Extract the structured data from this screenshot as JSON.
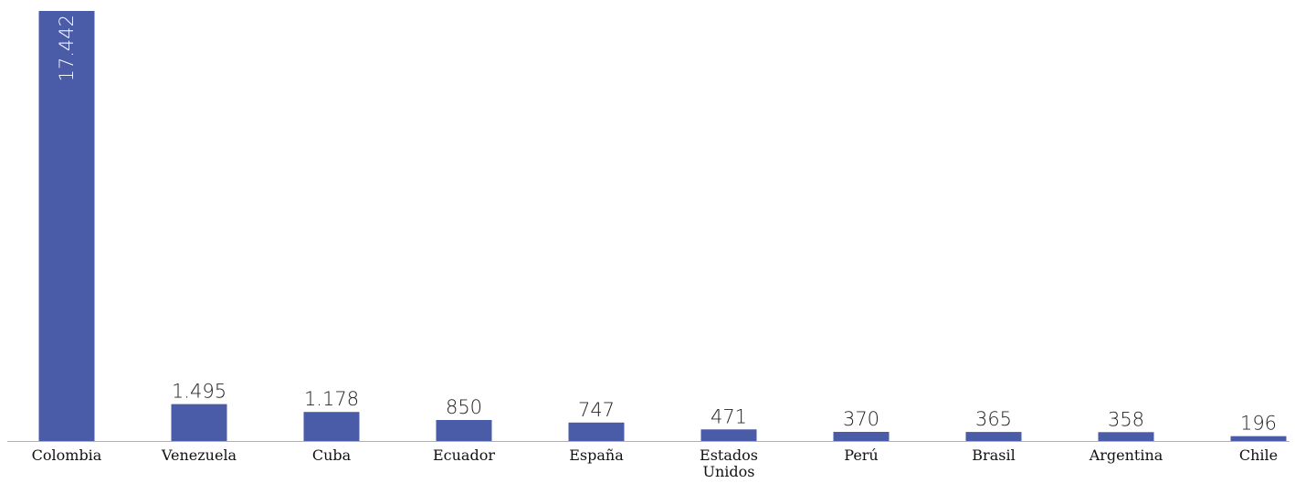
{
  "chart_data": {
    "type": "bar",
    "categories": [
      "Colombia",
      "Venezuela",
      "Cuba",
      "Ecuador",
      "España",
      "Estados Unidos",
      "Perú",
      "Brasil",
      "Argentina",
      "Chile"
    ],
    "category_lines": [
      [
        "Colombia"
      ],
      [
        "Venezuela"
      ],
      [
        "Cuba"
      ],
      [
        "Ecuador"
      ],
      [
        "España"
      ],
      [
        "Estados",
        "Unidos"
      ],
      [
        "Perú"
      ],
      [
        "Brasil"
      ],
      [
        "Argentina"
      ],
      [
        "Chile"
      ]
    ],
    "values": [
      17442,
      1495,
      1178,
      850,
      747,
      471,
      370,
      365,
      358,
      196
    ],
    "value_labels": [
      "17.442",
      "1.495",
      "1.178",
      "850",
      "747",
      "471",
      "370",
      "365",
      "358",
      "196"
    ],
    "ylim": [
      0,
      17442
    ],
    "grid": false,
    "legend": "none",
    "bar_color": "#4a5ba8",
    "axis_color": "#b0b0b0"
  }
}
